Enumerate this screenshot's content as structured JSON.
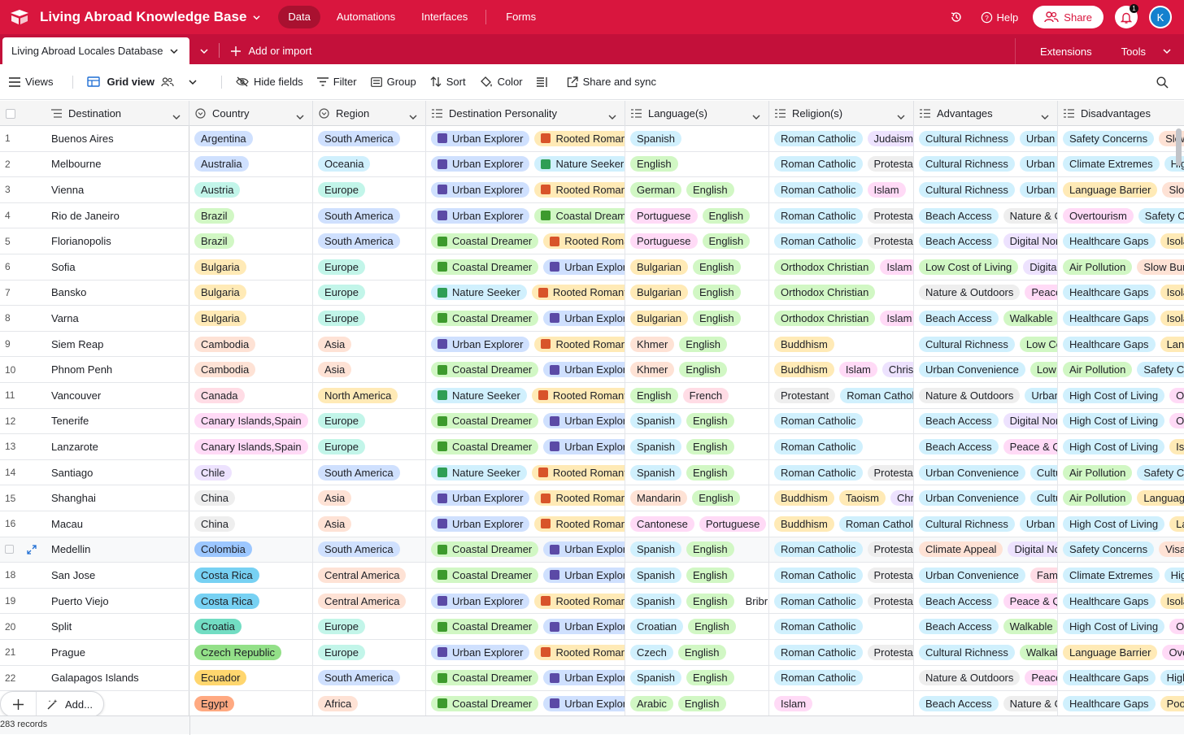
{
  "topbar": {
    "base_title": "Living Abroad Knowledge Base",
    "nav": [
      "Data",
      "Automations",
      "Interfaces",
      "Forms"
    ],
    "help": "Help",
    "share": "Share",
    "notif_count": "1",
    "avatar_initial": "K"
  },
  "tabbar": {
    "table_name": "Living Abroad Locales Database",
    "add_import": "Add or import",
    "extensions": "Extensions",
    "tools": "Tools"
  },
  "toolbar": {
    "views": "Views",
    "grid_view": "Grid view",
    "hide_fields": "Hide fields",
    "filter": "Filter",
    "group": "Group",
    "sort": "Sort",
    "color": "Color",
    "share_sync": "Share and sync"
  },
  "columns": [
    "Destination",
    "Country",
    "Region",
    "Destination Personality",
    "Language(s)",
    "Religion(s)",
    "Advantages",
    "Disadvantages"
  ],
  "colors": {
    "accent": "#d9163e",
    "tab_bar": "#c3103a"
  },
  "rows": [
    {
      "n": "1",
      "dest": "Buenos Aires",
      "country": "Argentina",
      "region": "South America",
      "pers": [
        "Urban Explorer",
        "Rooted Romantic"
      ],
      "lang": [
        "Spanish"
      ],
      "rel": [
        "Roman Catholic",
        "Judaism"
      ],
      "adv": [
        "Cultural Richness",
        "Urban Convenience"
      ],
      "dis": [
        "Safety Concerns",
        "Slow Bureaucracy"
      ]
    },
    {
      "n": "2",
      "dest": "Melbourne",
      "country": "Australia",
      "region": "Oceania",
      "pers": [
        "Urban Explorer",
        "Nature Seeker"
      ],
      "lang": [
        "English"
      ],
      "rel": [
        "Roman Catholic",
        "Protestant"
      ],
      "adv": [
        "Cultural Richness",
        "Urban Convenience"
      ],
      "dis": [
        "Climate Extremes",
        "High Cost of Living"
      ]
    },
    {
      "n": "3",
      "dest": "Vienna",
      "country": "Austria",
      "region": "Europe",
      "pers": [
        "Urban Explorer",
        "Rooted Romantic"
      ],
      "lang": [
        "German",
        "English"
      ],
      "rel": [
        "Roman Catholic",
        "Islam"
      ],
      "adv": [
        "Cultural Richness",
        "Urban Convenience"
      ],
      "dis": [
        "Language Barrier",
        "Slow Bureaucracy"
      ]
    },
    {
      "n": "4",
      "dest": "Rio de Janeiro",
      "country": "Brazil",
      "region": "South America",
      "pers": [
        "Urban Explorer",
        "Coastal Dreamer"
      ],
      "lang": [
        "Portuguese",
        "English"
      ],
      "rel": [
        "Roman Catholic",
        "Protestant"
      ],
      "adv": [
        "Beach Access",
        "Nature & Outdoors"
      ],
      "dis": [
        "Overtourism",
        "Safety Concerns"
      ]
    },
    {
      "n": "5",
      "dest": "Florianopolis",
      "country": "Brazil",
      "region": "South America",
      "pers": [
        "Coastal Dreamer",
        "Rooted Romantic"
      ],
      "lang": [
        "Portuguese",
        "English"
      ],
      "rel": [
        "Roman Catholic",
        "Protestant"
      ],
      "adv": [
        "Beach Access",
        "Digital Nomad"
      ],
      "dis": [
        "Healthcare Gaps",
        "Isolation"
      ]
    },
    {
      "n": "6",
      "dest": "Sofia",
      "country": "Bulgaria",
      "region": "Europe",
      "pers": [
        "Coastal Dreamer",
        "Urban Explorer"
      ],
      "lang": [
        "Bulgarian",
        "English"
      ],
      "rel": [
        "Orthodox Christian",
        "Islam"
      ],
      "adv": [
        "Low Cost of Living",
        "Digital Nomad"
      ],
      "dis": [
        "Air Pollution",
        "Slow Bureaucracy"
      ]
    },
    {
      "n": "7",
      "dest": "Bansko",
      "country": "Bulgaria",
      "region": "Europe",
      "pers": [
        "Nature Seeker",
        "Rooted Romantic"
      ],
      "lang": [
        "Bulgarian",
        "English"
      ],
      "rel": [
        "Orthodox Christian"
      ],
      "adv": [
        "Nature & Outdoors",
        "Peace & Quiet"
      ],
      "dis": [
        "Healthcare Gaps",
        "Isolation"
      ]
    },
    {
      "n": "8",
      "dest": "Varna",
      "country": "Bulgaria",
      "region": "Europe",
      "pers": [
        "Coastal Dreamer",
        "Urban Explorer"
      ],
      "lang": [
        "Bulgarian",
        "English"
      ],
      "rel": [
        "Orthodox Christian",
        "Islam"
      ],
      "adv": [
        "Beach Access",
        "Walkable"
      ],
      "dis": [
        "Healthcare Gaps",
        "Isolation"
      ]
    },
    {
      "n": "9",
      "dest": "Siem Reap",
      "country": "Cambodia",
      "region": "Asia",
      "pers": [
        "Urban Explorer",
        "Rooted Romantic"
      ],
      "lang": [
        "Khmer",
        "English"
      ],
      "rel": [
        "Buddhism"
      ],
      "adv": [
        "Cultural Richness",
        "Low Cost of Living"
      ],
      "dis": [
        "Healthcare Gaps",
        "Language Barrier"
      ]
    },
    {
      "n": "10",
      "dest": "Phnom Penh",
      "country": "Cambodia",
      "region": "Asia",
      "pers": [
        "Coastal Dreamer",
        "Urban Explorer"
      ],
      "lang": [
        "Khmer",
        "English"
      ],
      "rel": [
        "Buddhism",
        "Islam",
        "Christianity"
      ],
      "adv": [
        "Urban Convenience",
        "Low Cost of Living"
      ],
      "dis": [
        "Air Pollution",
        "Safety Concerns"
      ]
    },
    {
      "n": "11",
      "dest": "Vancouver",
      "country": "Canada",
      "region": "North America",
      "pers": [
        "Nature Seeker",
        "Rooted Romantic"
      ],
      "lang": [
        "English",
        "French"
      ],
      "rel": [
        "Protestant",
        "Roman Catholic"
      ],
      "adv": [
        "Nature & Outdoors",
        "Urban Convenience"
      ],
      "dis": [
        "High Cost of Living",
        "Overtourism"
      ]
    },
    {
      "n": "12",
      "dest": "Tenerife",
      "country": "Canary Islands,Spain",
      "region": "Europe",
      "pers": [
        "Coastal Dreamer",
        "Urban Explorer"
      ],
      "lang": [
        "Spanish",
        "English"
      ],
      "rel": [
        "Roman Catholic"
      ],
      "adv": [
        "Beach Access",
        "Digital Nomad"
      ],
      "dis": [
        "High Cost of Living",
        "Overtourism"
      ]
    },
    {
      "n": "13",
      "dest": "Lanzarote",
      "country": "Canary Islands,Spain",
      "region": "Europe",
      "pers": [
        "Coastal Dreamer",
        "Urban Explorer"
      ],
      "lang": [
        "Spanish",
        "English"
      ],
      "rel": [
        "Roman Catholic"
      ],
      "adv": [
        "Beach Access",
        "Peace & Quiet"
      ],
      "dis": [
        "High Cost of Living",
        "Isolation"
      ]
    },
    {
      "n": "14",
      "dest": "Santiago",
      "country": "Chile",
      "region": "South America",
      "pers": [
        "Nature Seeker",
        "Rooted Romantic"
      ],
      "lang": [
        "Spanish",
        "English"
      ],
      "rel": [
        "Roman Catholic",
        "Protestant"
      ],
      "adv": [
        "Urban Convenience",
        "Cultural Richness"
      ],
      "dis": [
        "Air Pollution",
        "Safety Concerns"
      ]
    },
    {
      "n": "15",
      "dest": "Shanghai",
      "country": "China",
      "region": "Asia",
      "pers": [
        "Urban Explorer",
        "Rooted Romantic"
      ],
      "lang": [
        "Mandarin",
        "English"
      ],
      "rel": [
        "Buddhism",
        "Taoism",
        "Christianity"
      ],
      "adv": [
        "Urban Convenience",
        "Cultural Richness"
      ],
      "dis": [
        "Air Pollution",
        "Language Barrier"
      ]
    },
    {
      "n": "16",
      "dest": "Macau",
      "country": "China",
      "region": "Asia",
      "pers": [
        "Urban Explorer",
        "Rooted Romantic"
      ],
      "lang": [
        "Cantonese",
        "Portuguese",
        "English"
      ],
      "rel": [
        "Buddhism",
        "Roman Catholic"
      ],
      "adv": [
        "Cultural Richness",
        "Urban Convenience"
      ],
      "dis": [
        "High Cost of Living",
        "Language Barrier"
      ]
    },
    {
      "n": "",
      "dest": "Medellin",
      "country": "Colombia",
      "region": "South America",
      "pers": [
        "Coastal Dreamer",
        "Urban Explorer"
      ],
      "lang": [
        "Spanish",
        "English"
      ],
      "rel": [
        "Roman Catholic",
        "Protestant"
      ],
      "adv": [
        "Climate Appeal",
        "Digital Nomad"
      ],
      "dis": [
        "Safety Concerns",
        "Visa Challenges"
      ]
    },
    {
      "n": "18",
      "dest": "San Jose",
      "country": "Costa Rica",
      "region": "Central America",
      "pers": [
        "Coastal Dreamer",
        "Urban Explorer"
      ],
      "lang": [
        "Spanish",
        "English"
      ],
      "rel": [
        "Roman Catholic",
        "Protestant"
      ],
      "adv": [
        "Urban Convenience",
        "Family Friendly"
      ],
      "dis": [
        "Climate Extremes",
        "High Cost of Living"
      ]
    },
    {
      "n": "19",
      "dest": "Puerto Viejo",
      "country": "Costa Rica",
      "region": "Central America",
      "pers": [
        "Urban Explorer",
        "Rooted Romantic"
      ],
      "lang": [
        "Spanish",
        "English",
        "Bribri"
      ],
      "rel": [
        "Roman Catholic",
        "Protestant"
      ],
      "adv": [
        "Beach Access",
        "Peace & Quiet"
      ],
      "dis": [
        "Healthcare Gaps",
        "Isolation"
      ]
    },
    {
      "n": "20",
      "dest": "Split",
      "country": "Croatia",
      "region": "Europe",
      "pers": [
        "Coastal Dreamer",
        "Urban Explorer"
      ],
      "lang": [
        "Croatian",
        "English"
      ],
      "rel": [
        "Roman Catholic"
      ],
      "adv": [
        "Beach Access",
        "Walkable"
      ],
      "dis": [
        "High Cost of Living",
        "Overtourism"
      ]
    },
    {
      "n": "21",
      "dest": "Prague",
      "country": "Czech Republic",
      "region": "Europe",
      "pers": [
        "Urban Explorer",
        "Rooted Romantic"
      ],
      "lang": [
        "Czech",
        "English"
      ],
      "rel": [
        "Roman Catholic",
        "Protestant"
      ],
      "adv": [
        "Cultural Richness",
        "Walkable"
      ],
      "dis": [
        "Language Barrier",
        "Overtourism"
      ]
    },
    {
      "n": "22",
      "dest": "Galapagos Islands",
      "country": "Ecuador",
      "region": "South America",
      "pers": [
        "Coastal Dreamer",
        "Urban Explorer"
      ],
      "lang": [
        "Spanish",
        "English"
      ],
      "rel": [
        "Roman Catholic"
      ],
      "adv": [
        "Nature & Outdoors",
        "Peace & Quiet"
      ],
      "dis": [
        "Healthcare Gaps",
        "High Cost of Living"
      ]
    },
    {
      "n": "",
      "dest": "",
      "country": "Egypt",
      "region": "Africa",
      "pers": [
        "Coastal Dreamer",
        "Urban Explorer"
      ],
      "lang": [
        "Arabic",
        "English"
      ],
      "rel": [
        "Islam"
      ],
      "adv": [
        "Beach Access",
        "Nature & Outdoors"
      ],
      "dis": [
        "Healthcare Gaps",
        "Poor Infrastructure"
      ]
    }
  ],
  "records_count": "283 records",
  "add_button": "Add..."
}
